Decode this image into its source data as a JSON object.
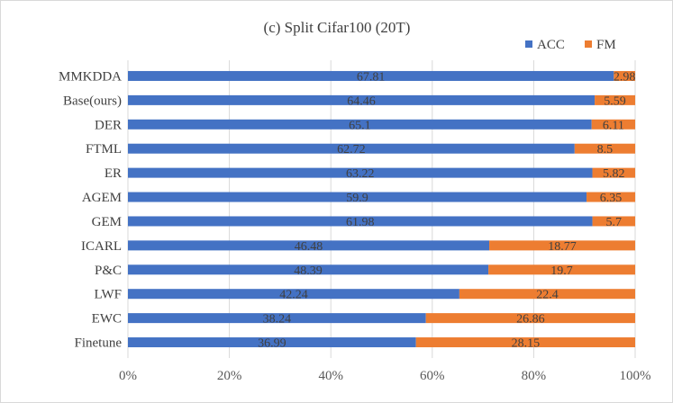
{
  "chart_data": {
    "type": "bar",
    "orientation": "horizontal",
    "stacking": "percent",
    "title": "(c)  Split Cifar100 (20T)",
    "categories": [
      "MMKDDA",
      "Base(ours)",
      "DER",
      "FTML",
      "ER",
      "AGEM",
      "GEM",
      "ICARL",
      "P&C",
      "LWF",
      "EWC",
      "Finetune"
    ],
    "series": [
      {
        "name": "ACC",
        "color": "#4472c4",
        "values": [
          67.81,
          64.46,
          65.1,
          62.72,
          63.22,
          59.9,
          61.98,
          46.48,
          48.39,
          42.24,
          38.24,
          36.99
        ]
      },
      {
        "name": "FM",
        "color": "#ed7d31",
        "values": [
          2.98,
          5.59,
          6.11,
          8.5,
          5.82,
          6.35,
          5.7,
          18.77,
          19.7,
          22.4,
          26.86,
          28.15
        ]
      }
    ],
    "xticks": [
      "0%",
      "20%",
      "40%",
      "60%",
      "80%",
      "100%"
    ],
    "xlim": [
      0,
      100
    ],
    "grid": true,
    "legend_position": "top-right",
    "xlabel": "",
    "ylabel": ""
  }
}
